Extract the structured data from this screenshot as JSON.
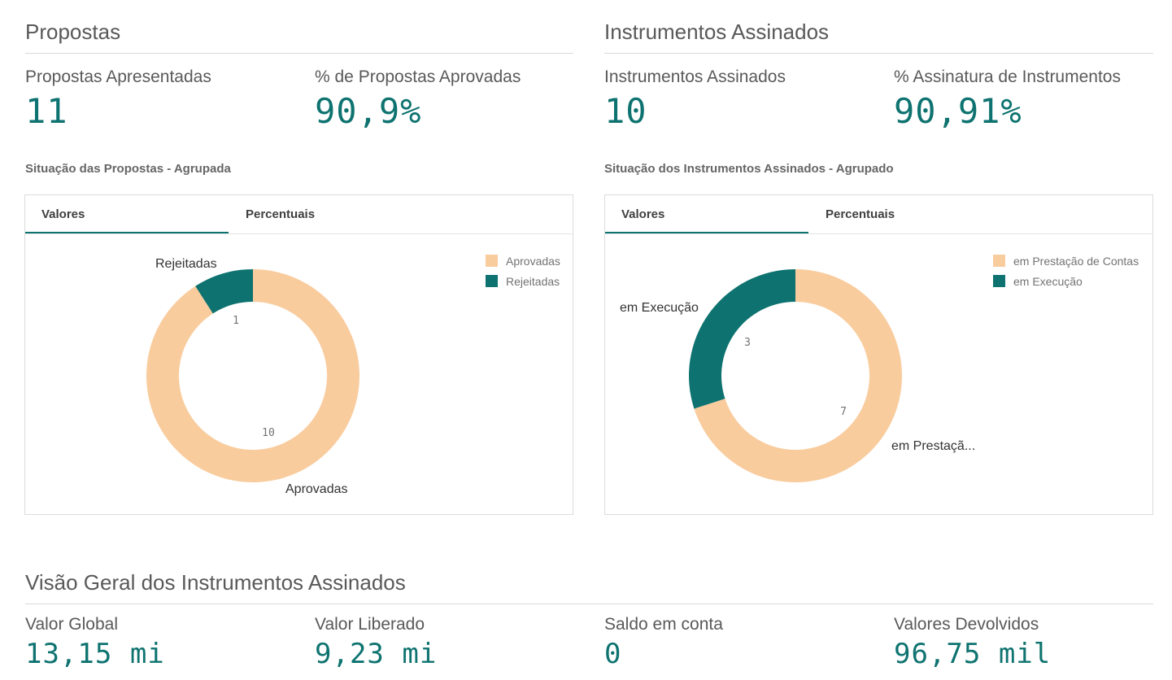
{
  "colors": {
    "accent": "#0e7370",
    "peach": "#f9cc9e",
    "teal": "#0e7370"
  },
  "propostas": {
    "title": "Propostas",
    "kpi1": {
      "label": "Propostas Apresentadas",
      "value": "11"
    },
    "kpi2": {
      "label": "% de Propostas Aprovadas",
      "value": "90,9%"
    },
    "chart_title": "Situação das Propostas - Agrupada",
    "tabs": [
      "Valores",
      "Percentuais"
    ]
  },
  "instrumentos": {
    "title": "Instrumentos Assinados",
    "kpi1": {
      "label": "Instrumentos Assinados",
      "value": "10"
    },
    "kpi2": {
      "label": "% Assinatura de Instrumentos",
      "value": "90,91%"
    },
    "chart_title": "Situação dos Instrumentos Assinados - Agrupado",
    "tabs": [
      "Valores",
      "Percentuais"
    ]
  },
  "visao": {
    "title": "Visão Geral dos Instrumentos Assinados",
    "kpis": [
      {
        "label": "Valor Global",
        "value": "13,15 mi"
      },
      {
        "label": "Valor Liberado",
        "value": "9,23 mi"
      },
      {
        "label": "Saldo em conta",
        "value": "0"
      },
      {
        "label": "Valores Devolvidos",
        "value": "96,75 mil"
      }
    ]
  },
  "chart_data": [
    {
      "type": "pie",
      "donut": true,
      "categories": [
        "Aprovadas",
        "Rejeitadas"
      ],
      "values": [
        10,
        1
      ],
      "colors": [
        "#f9cc9e",
        "#0e7370"
      ],
      "outer_labels": [
        "Aprovadas",
        "Rejeitadas"
      ],
      "legend": [
        "Aprovadas",
        "Rejeitadas"
      ],
      "legend_position": "top-right"
    },
    {
      "type": "pie",
      "donut": true,
      "categories": [
        "em Prestação de Contas",
        "em Execução"
      ],
      "values": [
        7,
        3
      ],
      "colors": [
        "#f9cc9e",
        "#0e7370"
      ],
      "outer_labels": [
        "em Prestaçã...",
        "em Execução"
      ],
      "legend": [
        "em Prestação de Contas",
        "em Execução"
      ],
      "legend_position": "top-right"
    }
  ]
}
